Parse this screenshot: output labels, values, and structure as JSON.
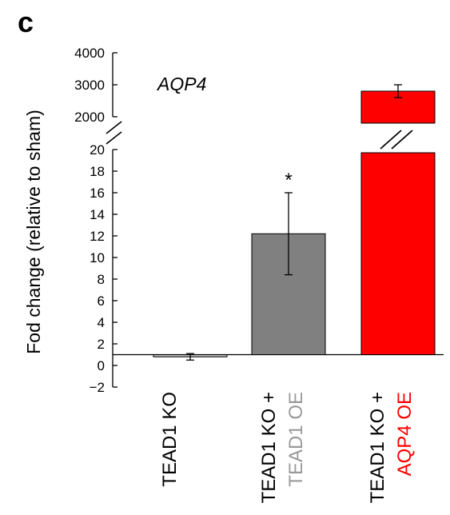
{
  "panel_label": "c",
  "chart_data": {
    "type": "bar",
    "title": "AQP4",
    "ylabel": "Fod change (relative to sham)",
    "xlabel": "",
    "broken_axis": true,
    "lower_axis": {
      "ylim": [
        -2,
        20
      ],
      "ticks": [
        -2,
        0,
        2,
        4,
        6,
        8,
        10,
        12,
        14,
        16,
        18,
        20
      ]
    },
    "upper_axis": {
      "ylim": [
        2000,
        4000
      ],
      "ticks": [
        2000,
        3000,
        4000
      ]
    },
    "baseline": 1,
    "grid": false,
    "legend": "none",
    "categories": [
      {
        "parts": [
          "TEAD1 KO"
        ],
        "colors": [
          "#000000"
        ]
      },
      {
        "parts": [
          "TEAD1 KO +",
          "TEAD1 OE"
        ],
        "colors": [
          "#000000",
          "#999999"
        ]
      },
      {
        "parts": [
          "TEAD1 KO +",
          "AQP4 OE"
        ],
        "colors": [
          "#000000",
          "#ff0000"
        ]
      }
    ],
    "values": [
      0.8,
      12.2,
      2800
    ],
    "errors": [
      0.3,
      3.8,
      200
    ],
    "colors": [
      "#bbbbbb",
      "#808080",
      "#ff0000"
    ],
    "annotations": [
      "",
      "*",
      ""
    ]
  }
}
